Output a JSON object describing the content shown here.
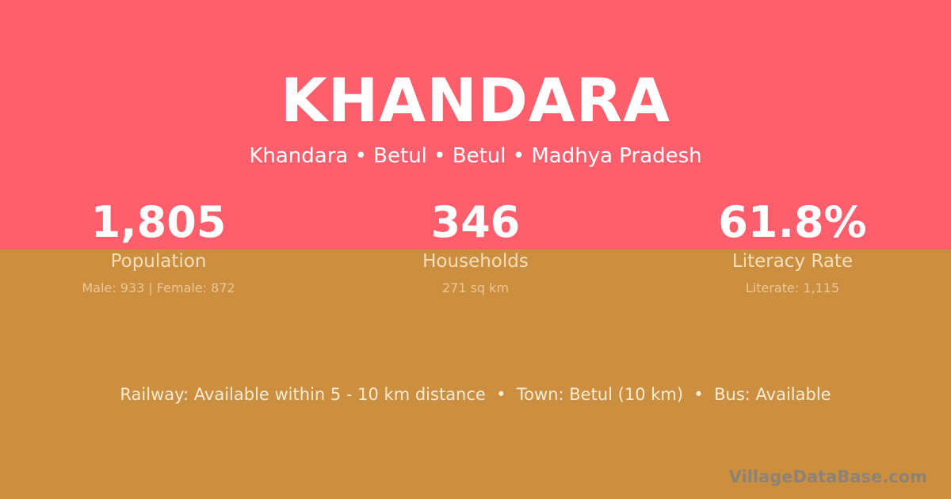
{
  "header": {
    "title": "KHANDARA",
    "location": "Khandara • Betul • Betul • Madhya Pradesh"
  },
  "stats": [
    {
      "value": "1,805",
      "label": "Population",
      "detail": "Male: 933 | Female: 872"
    },
    {
      "value": "346",
      "label": "Households",
      "detail": "271 sq km"
    },
    {
      "value": "61.8%",
      "label": "Literacy Rate",
      "detail": "Literate: 1,115"
    }
  ],
  "facts": "Railway: Available within 5 - 10 km distance  •  Town: Betul (10 km)  •  Bus: Available",
  "brand": "VillageDataBase.com",
  "colors": {
    "top_band": "#FF5F6D",
    "bottom_band": "#CC8E3F"
  }
}
